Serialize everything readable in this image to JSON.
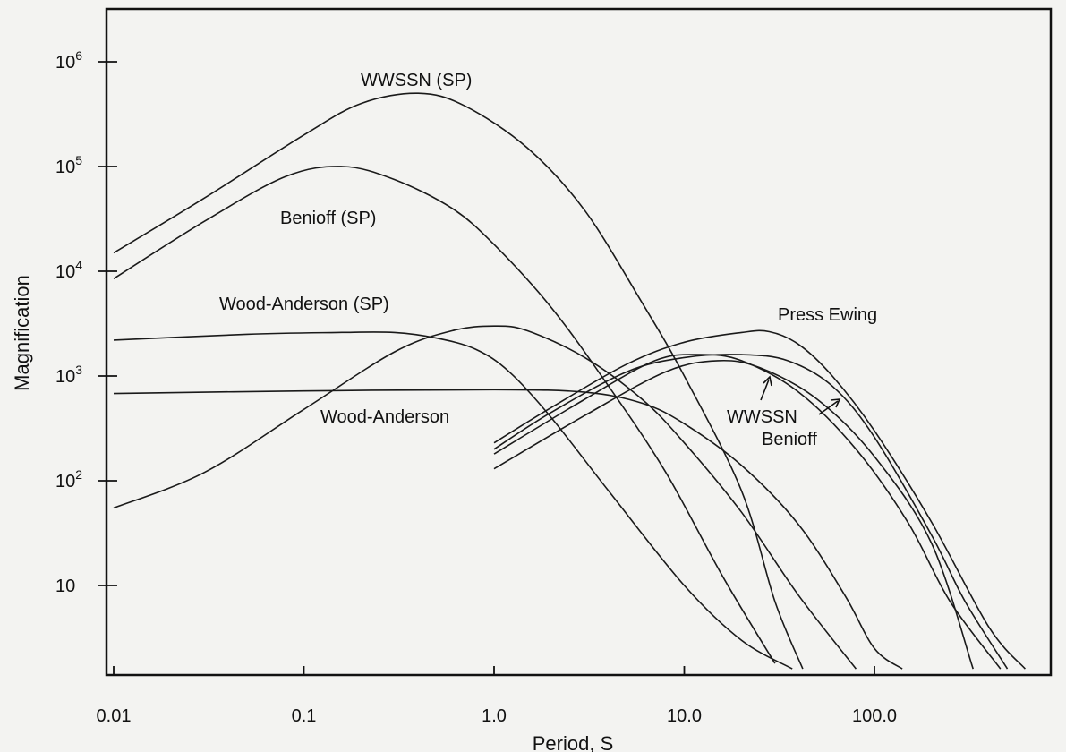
{
  "chart_data": {
    "type": "line",
    "xlabel": "Period, S",
    "ylabel": "Magnification",
    "xscale": "log",
    "yscale": "log",
    "xlim": [
      0.01,
      600
    ],
    "ylim": [
      1.6,
      2500000
    ],
    "x_ticks": [
      {
        "value": 0.01,
        "label": "0.01"
      },
      {
        "value": 0.1,
        "label": "0.1"
      },
      {
        "value": 1,
        "label": "1.0"
      },
      {
        "value": 10,
        "label": "10.0"
      },
      {
        "value": 100,
        "label": "100.0"
      }
    ],
    "y_ticks": [
      {
        "value": 10,
        "label": "10"
      },
      {
        "value": 100,
        "label": "10",
        "exp": "2"
      },
      {
        "value": 1000,
        "label": "10",
        "exp": "3"
      },
      {
        "value": 10000,
        "label": "10",
        "exp": "4"
      },
      {
        "value": 100000,
        "label": "10",
        "exp": "5"
      },
      {
        "value": 1000000,
        "label": "10",
        "exp": "6"
      }
    ],
    "series": [
      {
        "name": "WWSSN (SP)",
        "points": [
          [
            0.01,
            15000
          ],
          [
            0.03,
            50000
          ],
          [
            0.1,
            200000
          ],
          [
            0.2,
            400000
          ],
          [
            0.4,
            500000
          ],
          [
            0.7,
            380000
          ],
          [
            1.5,
            150000
          ],
          [
            3,
            38000
          ],
          [
            6,
            5000
          ],
          [
            10,
            1000
          ],
          [
            20,
            80
          ],
          [
            30,
            7
          ],
          [
            42,
            1.6
          ]
        ]
      },
      {
        "name": "Benioff (SP)",
        "points": [
          [
            0.01,
            8500
          ],
          [
            0.03,
            30000
          ],
          [
            0.08,
            80000
          ],
          [
            0.16,
            100000
          ],
          [
            0.3,
            75000
          ],
          [
            0.6,
            40000
          ],
          [
            1,
            18000
          ],
          [
            2,
            4500
          ],
          [
            4,
            800
          ],
          [
            8,
            120
          ],
          [
            16,
            12
          ],
          [
            30,
            1.8
          ]
        ]
      },
      {
        "name": "Wood-Anderson (SP)",
        "points": [
          [
            0.01,
            2200
          ],
          [
            0.05,
            2500
          ],
          [
            0.15,
            2600
          ],
          [
            0.3,
            2600
          ],
          [
            0.5,
            2300
          ],
          [
            0.8,
            1800
          ],
          [
            1.2,
            1100
          ],
          [
            2,
            400
          ],
          [
            4,
            80
          ],
          [
            10,
            10
          ],
          [
            20,
            3
          ],
          [
            37,
            1.6
          ]
        ]
      },
      {
        "name": "Wood-Anderson",
        "points": [
          [
            0.01,
            680
          ],
          [
            0.1,
            720
          ],
          [
            1,
            740
          ],
          [
            3,
            700
          ],
          [
            6,
            550
          ],
          [
            10,
            350
          ],
          [
            20,
            140
          ],
          [
            40,
            38
          ],
          [
            70,
            8
          ],
          [
            100,
            2.5
          ],
          [
            140,
            1.6
          ]
        ]
      },
      {
        "name": "",
        "points": [
          [
            0.01,
            55
          ],
          [
            0.03,
            120
          ],
          [
            0.1,
            480
          ],
          [
            0.3,
            1700
          ],
          [
            0.6,
            2700
          ],
          [
            1,
            3000
          ],
          [
            1.5,
            2700
          ],
          [
            3,
            1500
          ],
          [
            6,
            600
          ],
          [
            10,
            230
          ],
          [
            20,
            50
          ],
          [
            40,
            8
          ],
          [
            80,
            1.6
          ]
        ]
      },
      {
        "name": "Press Ewing",
        "points": [
          [
            1,
            230
          ],
          [
            2,
            500
          ],
          [
            5,
            1300
          ],
          [
            10,
            2100
          ],
          [
            20,
            2600
          ],
          [
            28,
            2650
          ],
          [
            40,
            2000
          ],
          [
            60,
            1000
          ],
          [
            100,
            300
          ],
          [
            200,
            40
          ],
          [
            400,
            4
          ],
          [
            620,
            1.6
          ]
        ]
      },
      {
        "name": "WWSSN",
        "points": [
          [
            1,
            200
          ],
          [
            2,
            450
          ],
          [
            5,
            1100
          ],
          [
            10,
            1500
          ],
          [
            20,
            1600
          ],
          [
            35,
            1400
          ],
          [
            60,
            800
          ],
          [
            100,
            260
          ],
          [
            200,
            30
          ],
          [
            300,
            7
          ],
          [
            500,
            1.6
          ]
        ]
      },
      {
        "name": "Benioff",
        "points": [
          [
            1,
            180
          ],
          [
            3,
            600
          ],
          [
            7,
            1400
          ],
          [
            12,
            1600
          ],
          [
            20,
            1400
          ],
          [
            40,
            700
          ],
          [
            80,
            200
          ],
          [
            150,
            40
          ],
          [
            250,
            7
          ],
          [
            460,
            1.6
          ]
        ]
      },
      {
        "name": "",
        "points": [
          [
            1,
            130
          ],
          [
            3,
            420
          ],
          [
            8,
            1100
          ],
          [
            15,
            1400
          ],
          [
            25,
            1200
          ],
          [
            50,
            600
          ],
          [
            100,
            170
          ],
          [
            200,
            25
          ],
          [
            330,
            1.6
          ]
        ]
      }
    ],
    "labels": [
      "WWSSN (SP)",
      "Benioff (SP)",
      "Wood-Anderson (SP)",
      "Wood-Anderson",
      "Press Ewing",
      "WWSSN",
      "Benioff"
    ]
  }
}
